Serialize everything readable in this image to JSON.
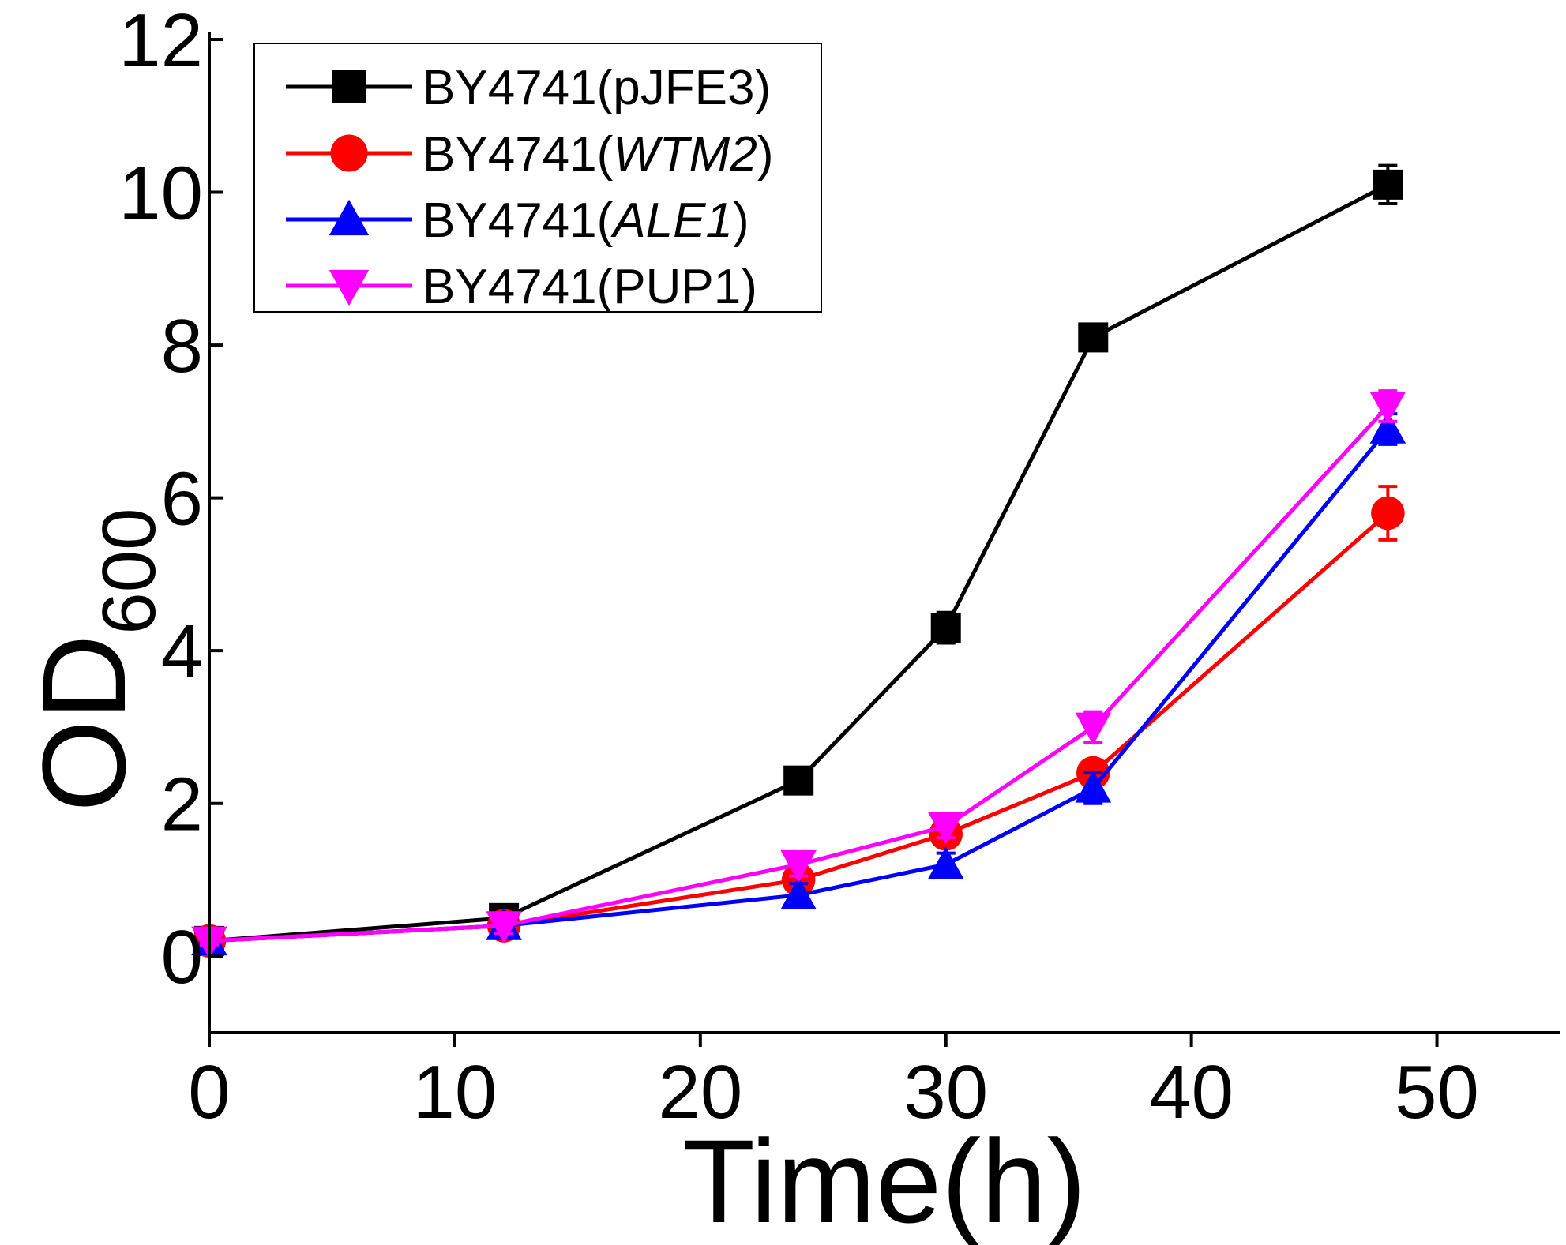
{
  "chart_data": {
    "type": "line",
    "title": "",
    "xlabel": "Time(h)",
    "ylabel": {
      "main": "OD",
      "sub": "600"
    },
    "xlim": [
      0,
      55
    ],
    "ylim": [
      -1,
      12
    ],
    "xticks": [
      0,
      10,
      20,
      30,
      40,
      50
    ],
    "yticks": [
      0,
      2,
      4,
      6,
      8,
      10,
      12
    ],
    "grid": false,
    "legend_position": "top-left",
    "x": [
      0,
      12,
      24,
      30,
      36,
      48
    ],
    "series": [
      {
        "name": "BY4741(pJFE3)",
        "legend": {
          "prefix": "BY4741(",
          "gene": "pJFE3",
          "suffix": ")",
          "italic": false
        },
        "color": "#000000",
        "marker": "square",
        "values": [
          0.2,
          0.5,
          2.3,
          4.3,
          8.1,
          10.1
        ],
        "errors": [
          0.05,
          0.1,
          0.15,
          0.2,
          0.15,
          0.25
        ]
      },
      {
        "name": "BY4741(WTM2)",
        "legend": {
          "prefix": "BY4741(",
          "gene": "WTM2",
          "suffix": ")",
          "italic": true
        },
        "color": "#ff0000",
        "marker": "circle",
        "values": [
          0.2,
          0.4,
          1.0,
          1.6,
          2.4,
          5.8
        ],
        "errors": [
          0.05,
          0.1,
          0.1,
          0.15,
          0.15,
          0.35
        ]
      },
      {
        "name": "BY4741(ALE1)",
        "legend": {
          "prefix": "BY4741(",
          "gene": "ALE1",
          "suffix": ")",
          "italic": true
        },
        "color": "#0000ff",
        "marker": "triangle-up",
        "values": [
          0.2,
          0.4,
          0.8,
          1.2,
          2.2,
          6.9
        ],
        "errors": [
          0.05,
          0.1,
          0.15,
          0.15,
          0.2,
          0.2
        ]
      },
      {
        "name": "BY4741(PUP1)",
        "legend": {
          "prefix": "BY4741(",
          "gene": "PUP1",
          "suffix": ")",
          "italic": false
        },
        "color": "#ff00ff",
        "marker": "triangle-down",
        "values": [
          0.2,
          0.4,
          1.2,
          1.7,
          3.0,
          7.2
        ],
        "errors": [
          0.05,
          0.1,
          0.15,
          0.15,
          0.2,
          0.2
        ]
      }
    ]
  }
}
